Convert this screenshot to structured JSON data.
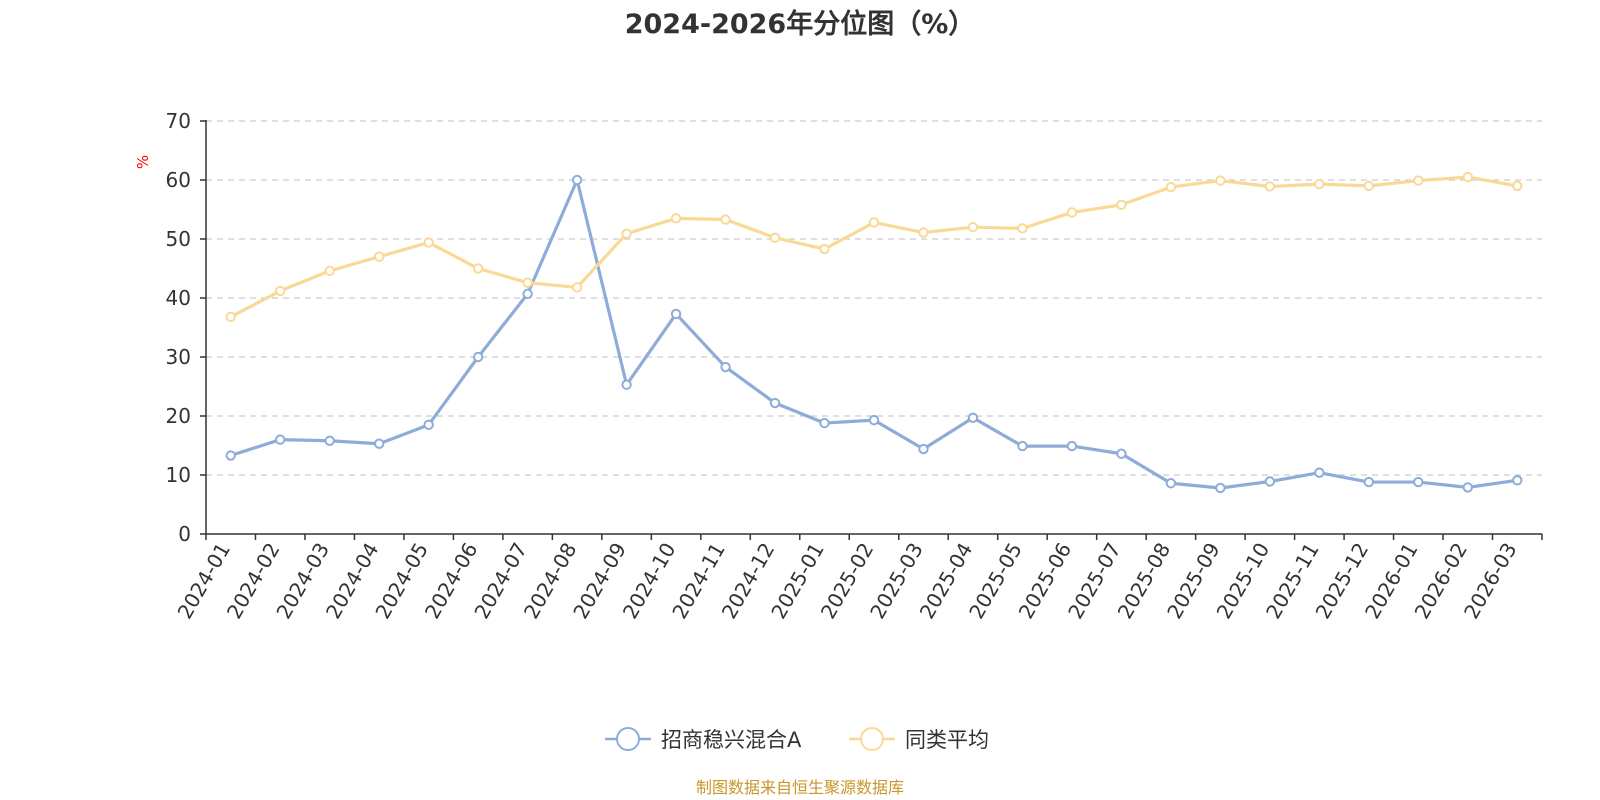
{
  "chart_data": {
    "type": "line",
    "title": "2024-2026年分位图（%）",
    "ylabel": "%",
    "ylim": [
      0,
      70
    ],
    "yticks": [
      0,
      10,
      20,
      30,
      40,
      50,
      60,
      70
    ],
    "grid": true,
    "legend_position": "bottom",
    "categories": [
      "2024-01",
      "2024-02",
      "2024-03",
      "2024-04",
      "2024-05",
      "2024-06",
      "2024-07",
      "2024-08",
      "2024-09",
      "2024-10",
      "2024-11",
      "2024-12",
      "2025-01",
      "2025-02",
      "2025-03",
      "2025-04",
      "2025-05",
      "2025-06",
      "2025-07",
      "2025-08",
      "2025-09",
      "2025-10",
      "2025-11",
      "2025-12",
      "2026-01",
      "2026-02",
      "2026-03"
    ],
    "series": [
      {
        "name": "招商稳兴混合A",
        "color": "#8eacd8",
        "values": [
          13.3,
          16.0,
          15.8,
          15.3,
          18.5,
          30.0,
          40.7,
          60.0,
          25.3,
          37.3,
          28.3,
          22.2,
          18.8,
          19.3,
          14.4,
          19.7,
          14.9,
          14.9,
          13.6,
          8.6,
          7.8,
          8.9,
          10.4,
          8.8,
          8.8,
          7.9,
          9.1
        ]
      },
      {
        "name": "同类平均",
        "color": "#fad996",
        "values": [
          36.8,
          41.2,
          44.6,
          47.0,
          49.4,
          45.0,
          42.6,
          41.8,
          50.9,
          53.5,
          53.3,
          50.2,
          48.3,
          52.8,
          51.1,
          52.0,
          51.8,
          54.5,
          55.8,
          58.8,
          59.9,
          58.9,
          59.3,
          59.0,
          59.9,
          60.5,
          59.0
        ]
      }
    ],
    "source": "制图数据来自恒生聚源数据库"
  }
}
